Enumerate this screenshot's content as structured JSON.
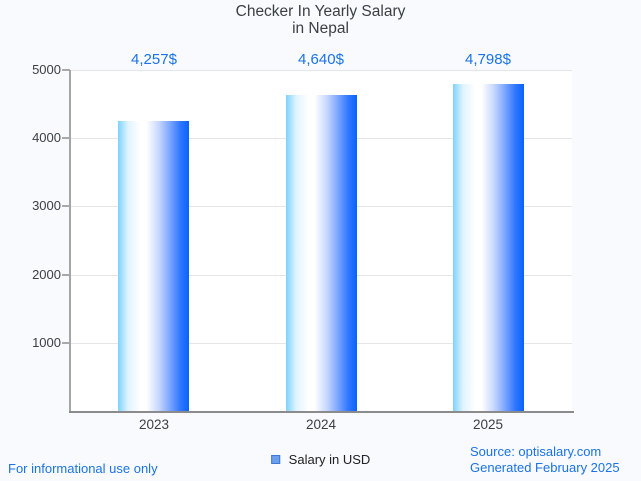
{
  "title": {
    "line1": "Checker In Yearly Salary",
    "line2": "in Nepal"
  },
  "chart_data": {
    "type": "bar",
    "title": "Checker In Yearly Salary in Nepal",
    "categories": [
      "2023",
      "2024",
      "2025"
    ],
    "series": [
      {
        "name": "Salary in USD",
        "values": [
          4257,
          4640,
          4798
        ]
      }
    ],
    "value_labels": [
      "4,257$",
      "4,640$",
      "4,798$"
    ],
    "xlabel": "",
    "ylabel": "",
    "ylim": [
      0,
      5000
    ],
    "yticks": [
      1000,
      2000,
      3000,
      4000,
      5000
    ],
    "grid": true,
    "legend_position": "bottom"
  },
  "legend": {
    "label": "Salary in USD",
    "swatch_fill": "#6d9eeb",
    "swatch_border": "#3c78d8"
  },
  "footer": {
    "disclaimer": "For informational use only",
    "source": "Source: optisalary.com",
    "generated": "Generated February 2025"
  },
  "colors": {
    "accent_blue": "#1a73e8",
    "bar_gradient": [
      "#7dd2fd",
      "#ffffff",
      "#0a63f9"
    ],
    "grid": "#e4e6ea",
    "axis": "#9e9e9e",
    "text_dark": "#3c4043",
    "background": "#f8fafd",
    "plot_background": "#ffffff"
  }
}
